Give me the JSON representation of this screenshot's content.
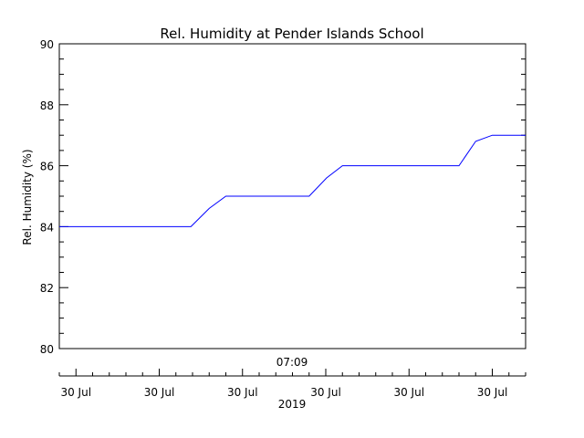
{
  "chart_data": {
    "type": "line",
    "title": "Rel. Humidity at Pender Islands School",
    "ylabel": "Rel. Humidity (%)",
    "ylim": [
      80,
      90
    ],
    "yticks": [
      80,
      82,
      84,
      86,
      88,
      90
    ],
    "grid": false,
    "center_time_label": "07:09",
    "year_label": "2019",
    "xlim": [
      0,
      56
    ],
    "xtick_positions": [
      2,
      12,
      22,
      32,
      42,
      52
    ],
    "xtick_labels": [
      "30 Jul",
      "30 Jul",
      "30 Jul",
      "30 Jul",
      "30 Jul",
      "30 Jul"
    ],
    "series": [
      {
        "color": "#0000ff",
        "x": [
          0,
          15.8,
          18,
          20,
          30,
          32.1,
          34,
          48,
          50,
          52,
          56
        ],
        "y": [
          84,
          84,
          84.6,
          85,
          85,
          85.6,
          86,
          86,
          86.8,
          87,
          87
        ]
      }
    ]
  }
}
